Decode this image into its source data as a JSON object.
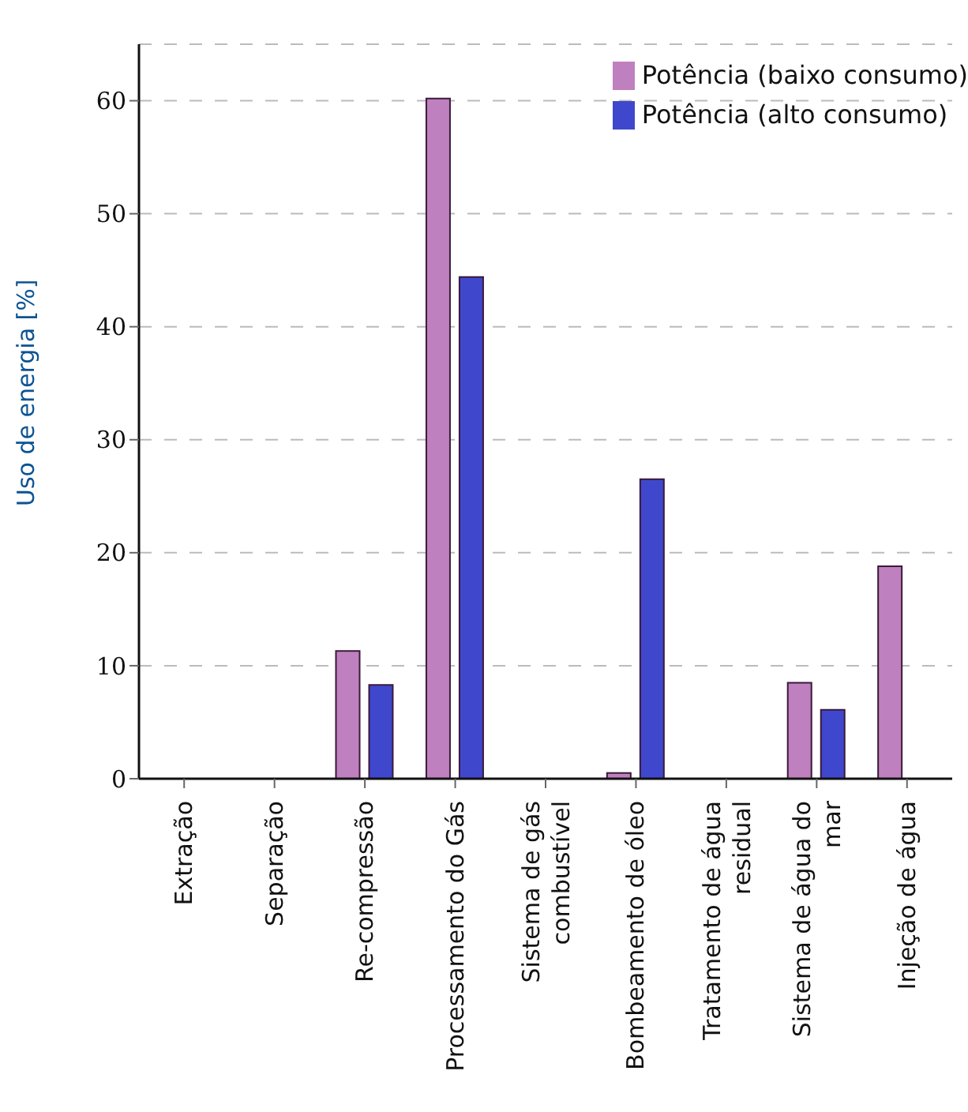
{
  "chart_data": {
    "type": "bar",
    "ylabel": "Uso de energia [%]",
    "categories": [
      "Extração",
      "Separação",
      "Re-compressão",
      "Processamento do Gás",
      "Sistema de gás combustível",
      "Bombeamento de óleo",
      "Tratamento de água residual",
      "Sistema de água do mar",
      "Injeção de água"
    ],
    "series": [
      {
        "name": "Potência (baixo consumo)",
        "color": "#bf80bf",
        "values": [
          0,
          0,
          11.3,
          60.2,
          0,
          0.5,
          0,
          8.5,
          18.8
        ]
      },
      {
        "name": "Potência (alto consumo)",
        "color": "#3f48cc",
        "values": [
          0,
          0,
          8.3,
          44.4,
          0,
          26.5,
          0,
          6.1,
          0
        ]
      }
    ],
    "ylim": [
      0,
      65
    ],
    "yticks": [
      0,
      10,
      20,
      30,
      40,
      50,
      60
    ],
    "grid": "y",
    "legend": "top right"
  }
}
